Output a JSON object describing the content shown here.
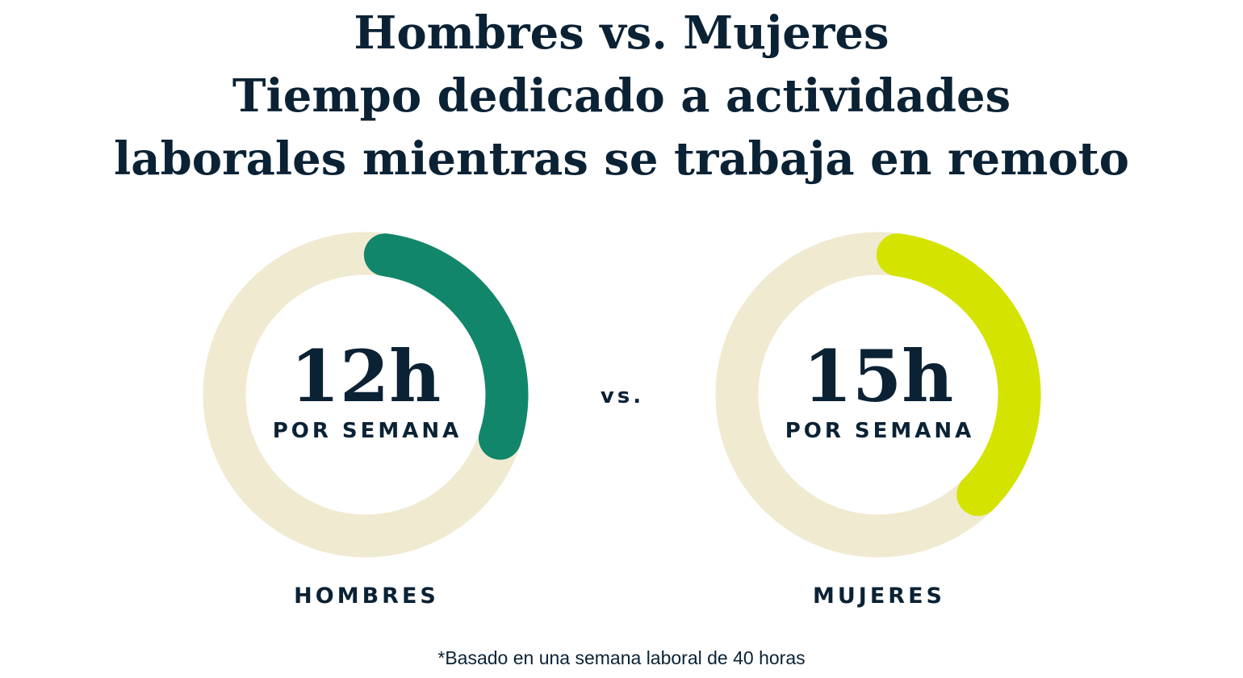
{
  "title_lines": [
    "Hombres vs. Mujeres",
    "Tiempo dedicado a actividades",
    "laborales mientras se trabaja en remoto"
  ],
  "vs_label": "vs.",
  "footnote": "*Basado en una semana laboral de 40 horas",
  "colors": {
    "track": "#f0ead1",
    "hombres": "#12866a",
    "mujeres": "#d4e300",
    "text": "#0b2235"
  },
  "chart_data": {
    "type": "pie",
    "total": 40,
    "unit": "h",
    "series": [
      {
        "name": "HOMBRES",
        "value": 12,
        "value_label": "12h",
        "unit_label": "POR SEMANA"
      },
      {
        "name": "MUJERES",
        "value": 15,
        "value_label": "15h",
        "unit_label": "POR SEMANA"
      }
    ]
  }
}
